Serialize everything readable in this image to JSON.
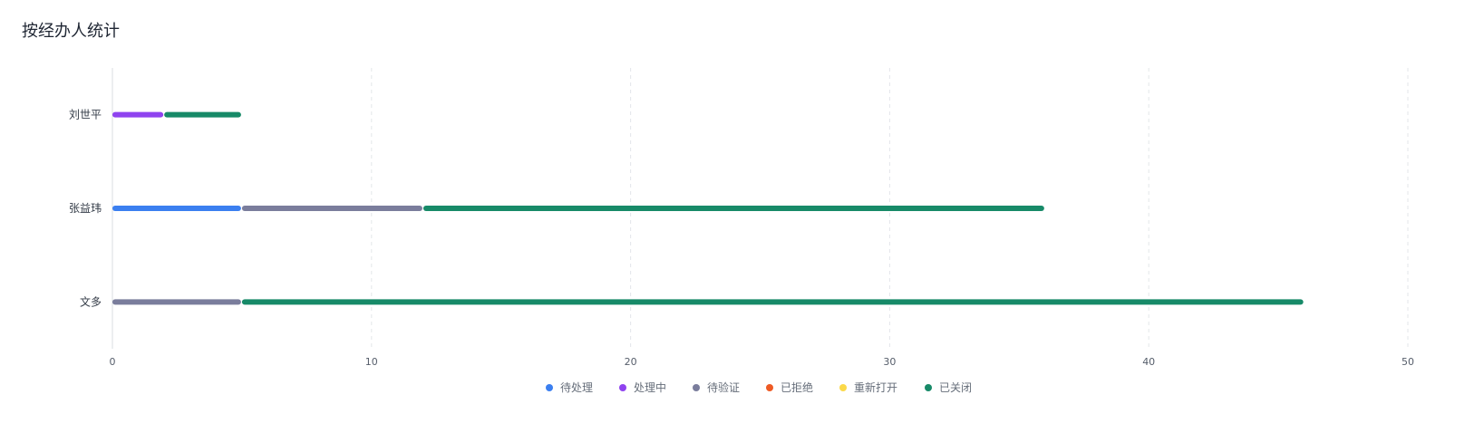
{
  "panel": {
    "title": "按经办人统计"
  },
  "chart_data": {
    "type": "bar",
    "orientation": "horizontal",
    "stacked": true,
    "categories": [
      "刘世平",
      "张益玮",
      "文多"
    ],
    "series": [
      {
        "name": "待处理",
        "color": "#3b7ff0",
        "values": [
          0,
          5,
          0
        ]
      },
      {
        "name": "处理中",
        "color": "#8f43ef",
        "values": [
          2,
          0,
          0
        ]
      },
      {
        "name": "待验证",
        "color": "#7a7d9c",
        "values": [
          0,
          7,
          5
        ]
      },
      {
        "name": "已拒绝",
        "color": "#ee5a24",
        "values": [
          0,
          0,
          0
        ]
      },
      {
        "name": "重新打开",
        "color": "#fbd94a",
        "values": [
          0,
          0,
          0
        ]
      },
      {
        "name": "已关闭",
        "color": "#178a68",
        "values": [
          3,
          24,
          41
        ]
      }
    ],
    "xlim": [
      0,
      50
    ],
    "xticks": [
      0,
      10,
      20,
      30,
      40,
      50
    ],
    "grid": true,
    "legend": "bottom-center"
  }
}
